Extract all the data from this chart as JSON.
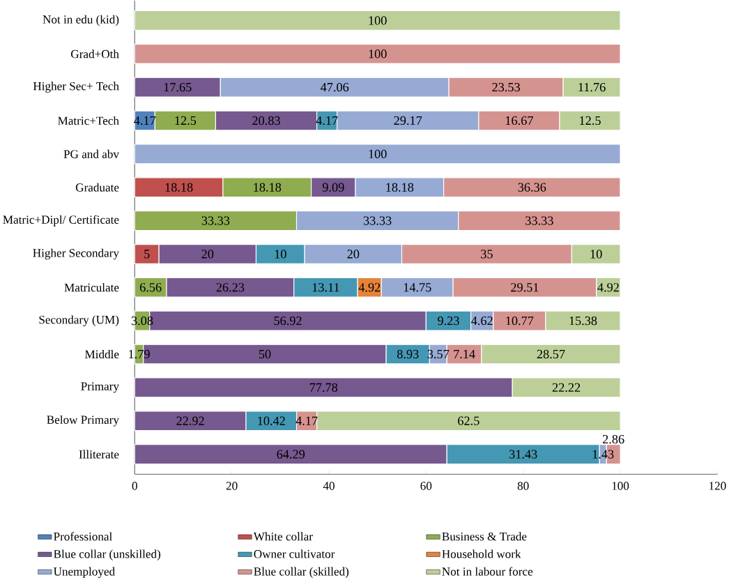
{
  "chart_data": {
    "type": "bar",
    "orientation": "horizontal",
    "stacked": true,
    "data_labels": true,
    "legend": "bottom",
    "categories": [
      "Not in edu (kid)",
      "Grad+Oth",
      "Higher Sec+ Tech",
      "Matric+Tech",
      "PG and abv",
      "Graduate",
      "Matric+Dipl/ Certificate",
      "Higher Secondary",
      "Matriculate",
      "Secondary (UM)",
      "Middle",
      "Primary",
      "Below Primary",
      "Illiterate"
    ],
    "xlim": [
      0,
      120
    ],
    "xticks": [
      0,
      20,
      40,
      60,
      80,
      100,
      120
    ],
    "series": [
      {
        "name": "Professional",
        "color": "#4f81bd",
        "values": [
          null,
          null,
          null,
          4.17,
          null,
          null,
          null,
          null,
          null,
          null,
          null,
          null,
          null,
          null
        ]
      },
      {
        "name": "White collar",
        "color": "#c0504d",
        "values": [
          null,
          null,
          null,
          null,
          null,
          18.18,
          null,
          5,
          null,
          null,
          null,
          null,
          null,
          null
        ]
      },
      {
        "name": "Business & Trade",
        "color": "#8fac50",
        "values": [
          null,
          null,
          null,
          12.5,
          null,
          18.18,
          33.33,
          null,
          6.56,
          3.08,
          1.79,
          null,
          null,
          null
        ]
      },
      {
        "name": "Blue collar (unskilled)",
        "color": "#76598f",
        "values": [
          null,
          null,
          17.65,
          20.83,
          null,
          9.09,
          null,
          20,
          26.23,
          56.92,
          50,
          77.78,
          22.92,
          64.29
        ]
      },
      {
        "name": "Owner cultivator",
        "color": "#4598b3",
        "values": [
          null,
          null,
          null,
          4.17,
          null,
          null,
          null,
          10,
          13.11,
          9.23,
          8.93,
          null,
          10.42,
          31.43
        ]
      },
      {
        "name": "Household work",
        "color": "#e5833b",
        "values": [
          null,
          null,
          null,
          null,
          null,
          null,
          null,
          null,
          4.92,
          null,
          null,
          null,
          null,
          null
        ]
      },
      {
        "name": "Unemployed",
        "color": "#96aad4",
        "values": [
          null,
          null,
          47.06,
          29.17,
          100,
          18.18,
          33.33,
          20,
          14.75,
          4.62,
          3.57,
          null,
          null,
          1.43
        ]
      },
      {
        "name": "Blue collar (skilled)",
        "color": "#d59390",
        "values": [
          null,
          100,
          23.53,
          16.67,
          null,
          36.36,
          33.33,
          35,
          29.51,
          10.77,
          7.14,
          null,
          4.17,
          2.86
        ]
      },
      {
        "name": "Not in labour force",
        "color": "#bccf98",
        "values": [
          100,
          null,
          11.76,
          12.5,
          null,
          null,
          null,
          10,
          4.92,
          15.38,
          28.57,
          22.22,
          62.5,
          null
        ]
      }
    ]
  }
}
